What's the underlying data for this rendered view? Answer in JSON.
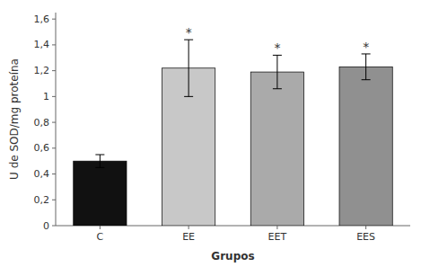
{
  "chart_data": {
    "type": "bar",
    "categories": [
      "C",
      "EE",
      "EET",
      "EES"
    ],
    "values": [
      0.5,
      1.22,
      1.19,
      1.23
    ],
    "errors": [
      0.05,
      0.22,
      0.13,
      0.1
    ],
    "colors": [
      "#111111",
      "#c8c8c8",
      "#aaaaaa",
      "#909090"
    ],
    "annotations": [
      null,
      "*",
      "*",
      "*"
    ],
    "ylabel": "U de SOD/mg proteína",
    "xlabel": "Grupos",
    "ylim": [
      0,
      1.65
    ],
    "yticks": [
      0,
      {
        "value": 0.2,
        "label": "0,2"
      },
      {
        "value": 0.4,
        "label": "0,4"
      },
      {
        "value": 0.6,
        "label": "0,6"
      },
      {
        "value": 0.8,
        "label": "0,8"
      },
      1,
      {
        "value": 1.2,
        "label": "1,2"
      },
      {
        "value": 1.4,
        "label": "1,4"
      },
      {
        "value": 1.6,
        "label": "1,6"
      }
    ],
    "grid": false
  }
}
